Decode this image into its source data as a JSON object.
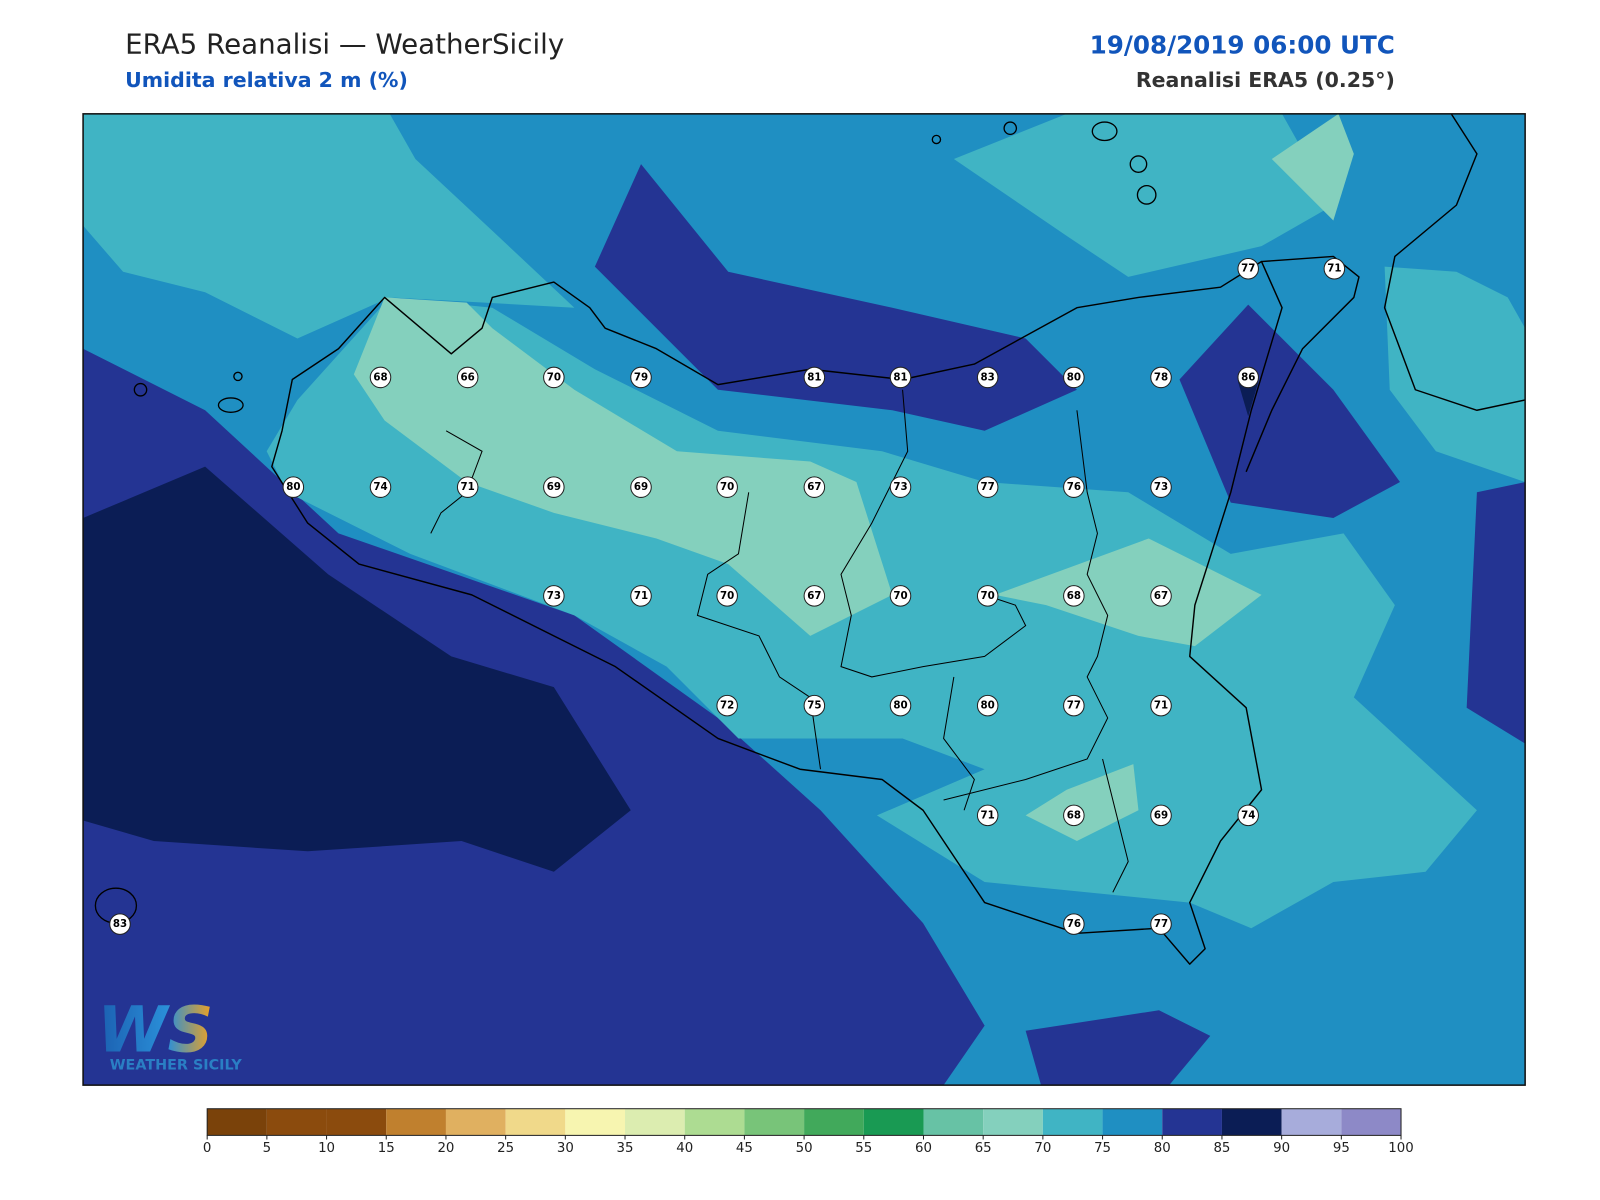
{
  "header": {
    "title": "ERA5 Reanalisi — WeatherSicily",
    "subtitle": "Umidita relativa 2 m (%)",
    "datetime": "19/08/2019 06:00 UTC",
    "source": "Reanalisi ERA5 (0.25°)"
  },
  "stations": [
    77,
    71,
    68,
    66,
    70,
    79,
    81,
    81,
    83,
    80,
    78,
    86,
    80,
    74,
    71,
    69,
    69,
    70,
    67,
    73,
    77,
    76,
    73,
    73,
    71,
    70,
    67,
    70,
    70,
    68,
    67,
    72,
    75,
    80,
    80,
    77,
    71,
    71,
    68,
    69,
    74,
    83,
    76,
    77
  ],
  "colorbar": {
    "ticks": [
      0,
      5,
      10,
      15,
      20,
      25,
      30,
      35,
      40,
      45,
      50,
      55,
      60,
      65,
      70,
      75,
      80,
      85,
      90,
      95,
      100
    ],
    "colors": [
      "#7a420a",
      "#8b4b0d",
      "#8b4b0d",
      "#c0802e",
      "#e0b060",
      "#f0d98a",
      "#f7f5b0",
      "#dcedb0",
      "#addc92",
      "#78c479",
      "#41a95b",
      "#199a53",
      "#67c2a5",
      "#84d0bd",
      "#40b4c4",
      "#1f8fc2",
      "#243493",
      "#0b1d55",
      "#a7acdb",
      "#8d89c7"
    ]
  },
  "logo": {
    "mark": "WS",
    "name": "WEATHER SICILY"
  }
}
